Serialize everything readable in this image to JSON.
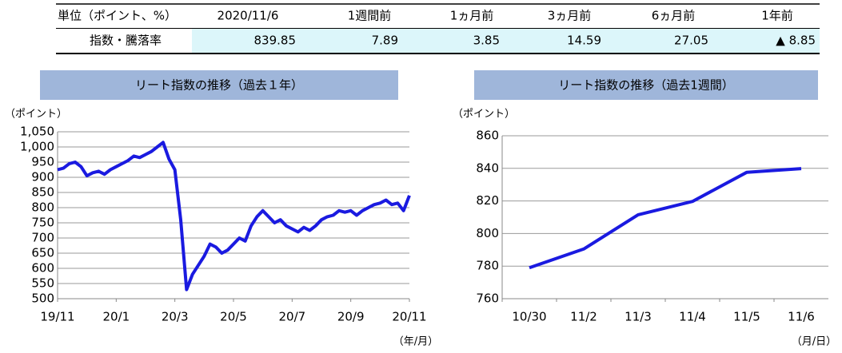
{
  "table": {
    "header": [
      "単位（ポイント、%）",
      "2020/11/6",
      "1週間前",
      "1ヵ月前",
      "3ヵ月前",
      "6ヵ月前",
      "1年前"
    ],
    "rows": [
      [
        "指数・騰落率",
        "839.85",
        "7.89",
        "3.85",
        "14.59",
        "27.05",
        "▲ 8.85"
      ]
    ]
  },
  "chart_data": [
    {
      "type": "line",
      "title": "リート指数の推移（過去１年）",
      "y_label": "（ポイント）",
      "x_label": "（年/月）",
      "x": [
        0,
        1,
        2,
        3,
        4,
        5,
        6,
        7,
        8,
        9,
        10,
        11,
        12,
        13,
        14,
        15,
        16,
        17,
        18,
        19,
        20,
        21,
        22,
        23,
        24,
        25,
        26,
        27,
        28,
        29,
        30,
        31,
        32,
        33,
        34,
        35,
        36,
        37,
        38,
        39,
        40,
        41,
        42,
        43,
        44,
        45,
        46,
        47,
        48,
        49,
        50,
        51,
        52,
        53,
        54,
        55,
        56,
        57,
        58,
        59,
        60
      ],
      "values": [
        925,
        930,
        945,
        950,
        935,
        905,
        915,
        920,
        910,
        925,
        935,
        945,
        955,
        970,
        965,
        975,
        985,
        1000,
        1015,
        960,
        925,
        760,
        530,
        580,
        610,
        640,
        680,
        670,
        650,
        660,
        680,
        700,
        690,
        740,
        770,
        790,
        770,
        750,
        760,
        740,
        730,
        720,
        735,
        725,
        740,
        760,
        770,
        775,
        790,
        785,
        790,
        775,
        790,
        800,
        810,
        815,
        825,
        810,
        815,
        790,
        840
      ],
      "color": "#1a1ae0",
      "xlim": [
        0,
        60
      ],
      "xticks": [
        {
          "value": 0,
          "label": "19/11"
        },
        {
          "value": 10,
          "label": "20/1"
        },
        {
          "value": 20,
          "label": "20/3"
        },
        {
          "value": 30,
          "label": "20/5"
        },
        {
          "value": 40,
          "label": "20/7"
        },
        {
          "value": 50,
          "label": "20/9"
        },
        {
          "value": 60,
          "label": "20/11"
        }
      ],
      "ylim": [
        500,
        1050
      ],
      "yticks": [
        500,
        550,
        600,
        650,
        700,
        750,
        800,
        850,
        900,
        950,
        {
          "value": 1000,
          "label": "1,000"
        },
        {
          "value": 1050,
          "label": "1,050"
        }
      ],
      "grid": true
    },
    {
      "type": "line",
      "title": "リート指数の推移（過去1週間）",
      "y_label": "（ポイント）",
      "x_label": "（月/日）",
      "categories": [
        "10/30",
        "11/2",
        "11/3",
        "11/4",
        "11/5",
        "11/6"
      ],
      "values": [
        779,
        790.5,
        811.5,
        819.7,
        837.6,
        839.85
      ],
      "color": "#1a1ae0",
      "ylim": [
        760,
        860
      ],
      "yticks": [
        760,
        780,
        800,
        820,
        840,
        860
      ],
      "grid": true
    }
  ]
}
